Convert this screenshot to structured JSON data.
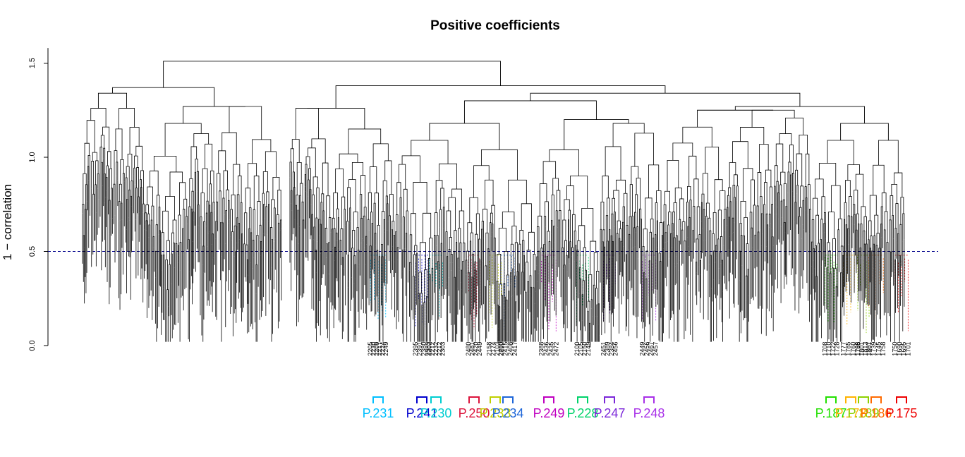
{
  "chart_data": {
    "type": "dendrogram",
    "title": "Positive coefficients",
    "xlabel": "",
    "ylabel": "1 − correlation",
    "ylim": [
      0,
      1.5
    ],
    "yticks": [
      "0.0",
      "0.5",
      "1.0",
      "1.5"
    ],
    "cut_height": 0.5,
    "colors": {
      "tree": "#000000",
      "cut_line": "#00008b"
    },
    "upper_merges": [
      0.56,
      1.38,
      1.04,
      1.18,
      1.25,
      1.51,
      1.37,
      1.26,
      1.09,
      1.15,
      1.27
    ],
    "clusters": [
      {
        "label": "P.231",
        "color": "#00bfff",
        "leaves": [
          "2205",
          "2230",
          "2209",
          "2217",
          "2224",
          "2249"
        ]
      },
      {
        "label": "P.241",
        "color": "#0000cd",
        "leaves": [
          "2395",
          "2391",
          "2380",
          "2383"
        ]
      },
      {
        "label": "P.230",
        "color": "#00ced1",
        "leaves": [
          "2202",
          "2212",
          "2232",
          "2212",
          "2303"
        ]
      },
      {
        "label": "P.250",
        "color": "#dc143c",
        "leaves": [
          "2480",
          "2481",
          "2420",
          "2449"
        ]
      },
      {
        "label": "P.233",
        "color": "#c0d000",
        "leaves": [
          "2158",
          "2174",
          "2103",
          "2210"
        ]
      },
      {
        "label": "P.234",
        "color": "#1e66d8",
        "leaves": [
          "2400",
          "2415",
          "2408",
          "2417"
        ]
      },
      {
        "label": "P.249",
        "color": "#c000c0",
        "leaves": [
          "2388",
          "2436",
          "2435",
          "2472"
        ]
      },
      {
        "label": "P.228",
        "color": "#00d26a",
        "leaves": [
          "2100",
          "2105",
          "2150",
          "2149"
        ]
      },
      {
        "label": "P.247",
        "color": "#7b26d9",
        "leaves": [
          "2451",
          "2389",
          "2384",
          "2456"
        ]
      },
      {
        "label": "P.248",
        "color": "#a830e8",
        "leaves": [
          "2449",
          "2456",
          "2467",
          "2457"
        ]
      },
      {
        "label": "P.187",
        "color": "#22e000",
        "leaves": [
          "1708",
          "1710",
          "1722",
          "1728"
        ]
      },
      {
        "label": "P.178",
        "color": "#ffb300",
        "leaves": [
          "1777",
          "1785",
          "1760",
          "1788"
        ]
      },
      {
        "label": "P.189",
        "color": "#8ed100",
        "leaves": [
          "1795",
          "1801",
          "1813",
          "1807"
        ]
      },
      {
        "label": "P.186",
        "color": "#ff6a00",
        "leaves": [
          "1761",
          "1739",
          "1745",
          "1758"
        ]
      },
      {
        "label": "P.175",
        "color": "#ee0000",
        "leaves": [
          "1750",
          "1690",
          "1695",
          "1701"
        ]
      }
    ]
  }
}
